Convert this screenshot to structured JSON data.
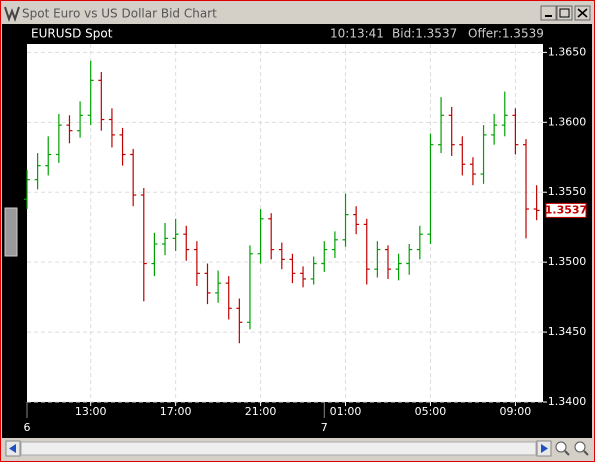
{
  "window": {
    "title": "Spot Euro vs US Dollar Bid Chart"
  },
  "chart_data": {
    "type": "ohlc",
    "title": "EURUSD Spot",
    "time": "10:13:41",
    "bid": "Bid:1.3537",
    "offer": "Offer:1.3539",
    "x": [
      10,
      10.5,
      11,
      11.5,
      12,
      12.5,
      13,
      13.5,
      14,
      14.5,
      15,
      15.5,
      16,
      16.5,
      17,
      17.5,
      18,
      18.5,
      19,
      19.5,
      20,
      20.5,
      21,
      21.5,
      22,
      22.5,
      23,
      23.5,
      24,
      24.5,
      25,
      25.5,
      26,
      26.5,
      27,
      27.5,
      28,
      28.5,
      29,
      29.5,
      30,
      30.5,
      31,
      31.5,
      32,
      32.5,
      33,
      33.5,
      34
    ],
    "open": [
      1.3545,
      1.3559,
      1.3569,
      1.3577,
      1.3598,
      1.3594,
      1.3605,
      1.363,
      1.3602,
      1.3591,
      1.3577,
      1.3548,
      1.3499,
      1.3513,
      1.3517,
      1.352,
      1.3509,
      1.3492,
      1.3478,
      1.3485,
      1.3467,
      1.3457,
      1.3506,
      1.3531,
      1.3509,
      1.3502,
      1.3492,
      1.3488,
      1.3499,
      1.3509,
      1.3516,
      1.3534,
      1.3527,
      1.3495,
      1.3509,
      1.3495,
      1.3499,
      1.3509,
      1.352,
      1.3584,
      1.3605,
      1.3584,
      1.357,
      1.3563,
      1.3591,
      1.3598,
      1.3605,
      1.3584,
      1.3538
    ],
    "high": [
      1.3566,
      1.3578,
      1.359,
      1.3606,
      1.3605,
      1.3615,
      1.3644,
      1.3636,
      1.361,
      1.3596,
      1.3581,
      1.3553,
      1.3521,
      1.3528,
      1.3531,
      1.3526,
      1.3515,
      1.3499,
      1.3494,
      1.349,
      1.3474,
      1.3512,
      1.3538,
      1.3535,
      1.3514,
      1.3506,
      1.3497,
      1.3504,
      1.3515,
      1.3522,
      1.3549,
      1.354,
      1.3531,
      1.3515,
      1.3512,
      1.3506,
      1.3513,
      1.3526,
      1.3592,
      1.3618,
      1.3611,
      1.359,
      1.3575,
      1.3598,
      1.3606,
      1.3622,
      1.361,
      1.3588,
      1.3555
    ],
    "low": [
      1.3538,
      1.3552,
      1.3562,
      1.3571,
      1.3585,
      1.3589,
      1.3598,
      1.3594,
      1.3582,
      1.3569,
      1.354,
      1.3472,
      1.349,
      1.3505,
      1.3508,
      1.3501,
      1.3483,
      1.347,
      1.3471,
      1.3459,
      1.3442,
      1.3452,
      1.3499,
      1.3502,
      1.3495,
      1.3485,
      1.3482,
      1.3484,
      1.3493,
      1.3503,
      1.3511,
      1.352,
      1.3484,
      1.3489,
      1.3488,
      1.3487,
      1.3491,
      1.3502,
      1.3513,
      1.3578,
      1.3576,
      1.3562,
      1.3555,
      1.3556,
      1.3584,
      1.359,
      1.3577,
      1.3517,
      1.353
    ],
    "close": [
      1.3559,
      1.3569,
      1.3577,
      1.3598,
      1.3594,
      1.3605,
      1.363,
      1.3602,
      1.3591,
      1.3577,
      1.3548,
      1.3499,
      1.3513,
      1.3517,
      1.352,
      1.3509,
      1.3492,
      1.3478,
      1.3485,
      1.3467,
      1.3457,
      1.3506,
      1.3531,
      1.3509,
      1.3502,
      1.3492,
      1.3488,
      1.3499,
      1.3509,
      1.3516,
      1.3534,
      1.3527,
      1.3495,
      1.3509,
      1.3495,
      1.3499,
      1.3509,
      1.352,
      1.3584,
      1.3605,
      1.3584,
      1.357,
      1.3563,
      1.3591,
      1.3598,
      1.3605,
      1.3584,
      1.3538,
      1.3537
    ],
    "up_color": "#00a000",
    "down_color": "#c00000",
    "xlim": [
      10,
      34.3
    ],
    "xticks": [
      {
        "value": 13,
        "label": "13:00"
      },
      {
        "value": 17,
        "label": "17:00"
      },
      {
        "value": 21,
        "label": "21:00"
      },
      {
        "value": 25,
        "label": "01:00"
      },
      {
        "value": 29,
        "label": "05:00"
      },
      {
        "value": 33,
        "label": "09:00"
      }
    ],
    "day_ticks": [
      {
        "value": 10,
        "label": "6"
      },
      {
        "value": 24,
        "label": "7"
      }
    ],
    "ylim": [
      1.34,
      1.3656
    ],
    "yticks": [
      {
        "value": 1.34,
        "label": "1.3400"
      },
      {
        "value": 1.345,
        "label": "1.3450"
      },
      {
        "value": 1.35,
        "label": "1.3500"
      },
      {
        "value": 1.355,
        "label": "1.3550"
      },
      {
        "value": 1.36,
        "label": "1.3600"
      },
      {
        "value": 1.365,
        "label": "1.3650"
      }
    ],
    "grid": true,
    "last_price": {
      "value": 1.3537,
      "label": "1.3537"
    }
  }
}
